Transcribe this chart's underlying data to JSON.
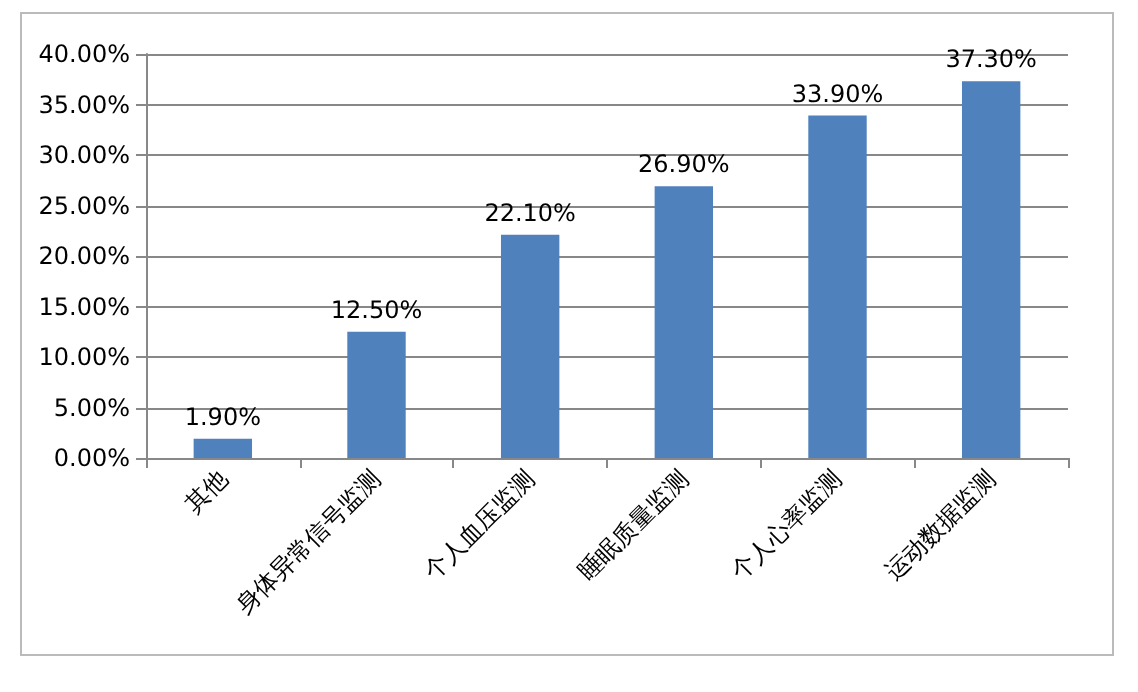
{
  "chart_data": {
    "type": "bar",
    "categories": [
      "其他",
      "身体异常信号监测",
      "个人血压监测",
      "睡眠质量监测",
      "个人心率监测",
      "运动数据监测"
    ],
    "values": [
      1.9,
      12.5,
      22.1,
      26.9,
      33.9,
      37.3
    ],
    "value_labels": [
      "1.90%",
      "12.50%",
      "22.10%",
      "26.90%",
      "33.90%",
      "37.30%"
    ],
    "color": "#4f81bd",
    "ylim": [
      0,
      40
    ],
    "yticks": [
      {
        "value": 0,
        "label": "0.00%"
      },
      {
        "value": 5,
        "label": "5.00%"
      },
      {
        "value": 10,
        "label": "10.00%"
      },
      {
        "value": 15,
        "label": "15.00%"
      },
      {
        "value": 20,
        "label": "20.00%"
      },
      {
        "value": 25,
        "label": "25.00%"
      },
      {
        "value": 30,
        "label": "30.00%"
      },
      {
        "value": 35,
        "label": "35.00%"
      },
      {
        "value": 40,
        "label": "40.00%"
      }
    ],
    "grid": "y"
  }
}
